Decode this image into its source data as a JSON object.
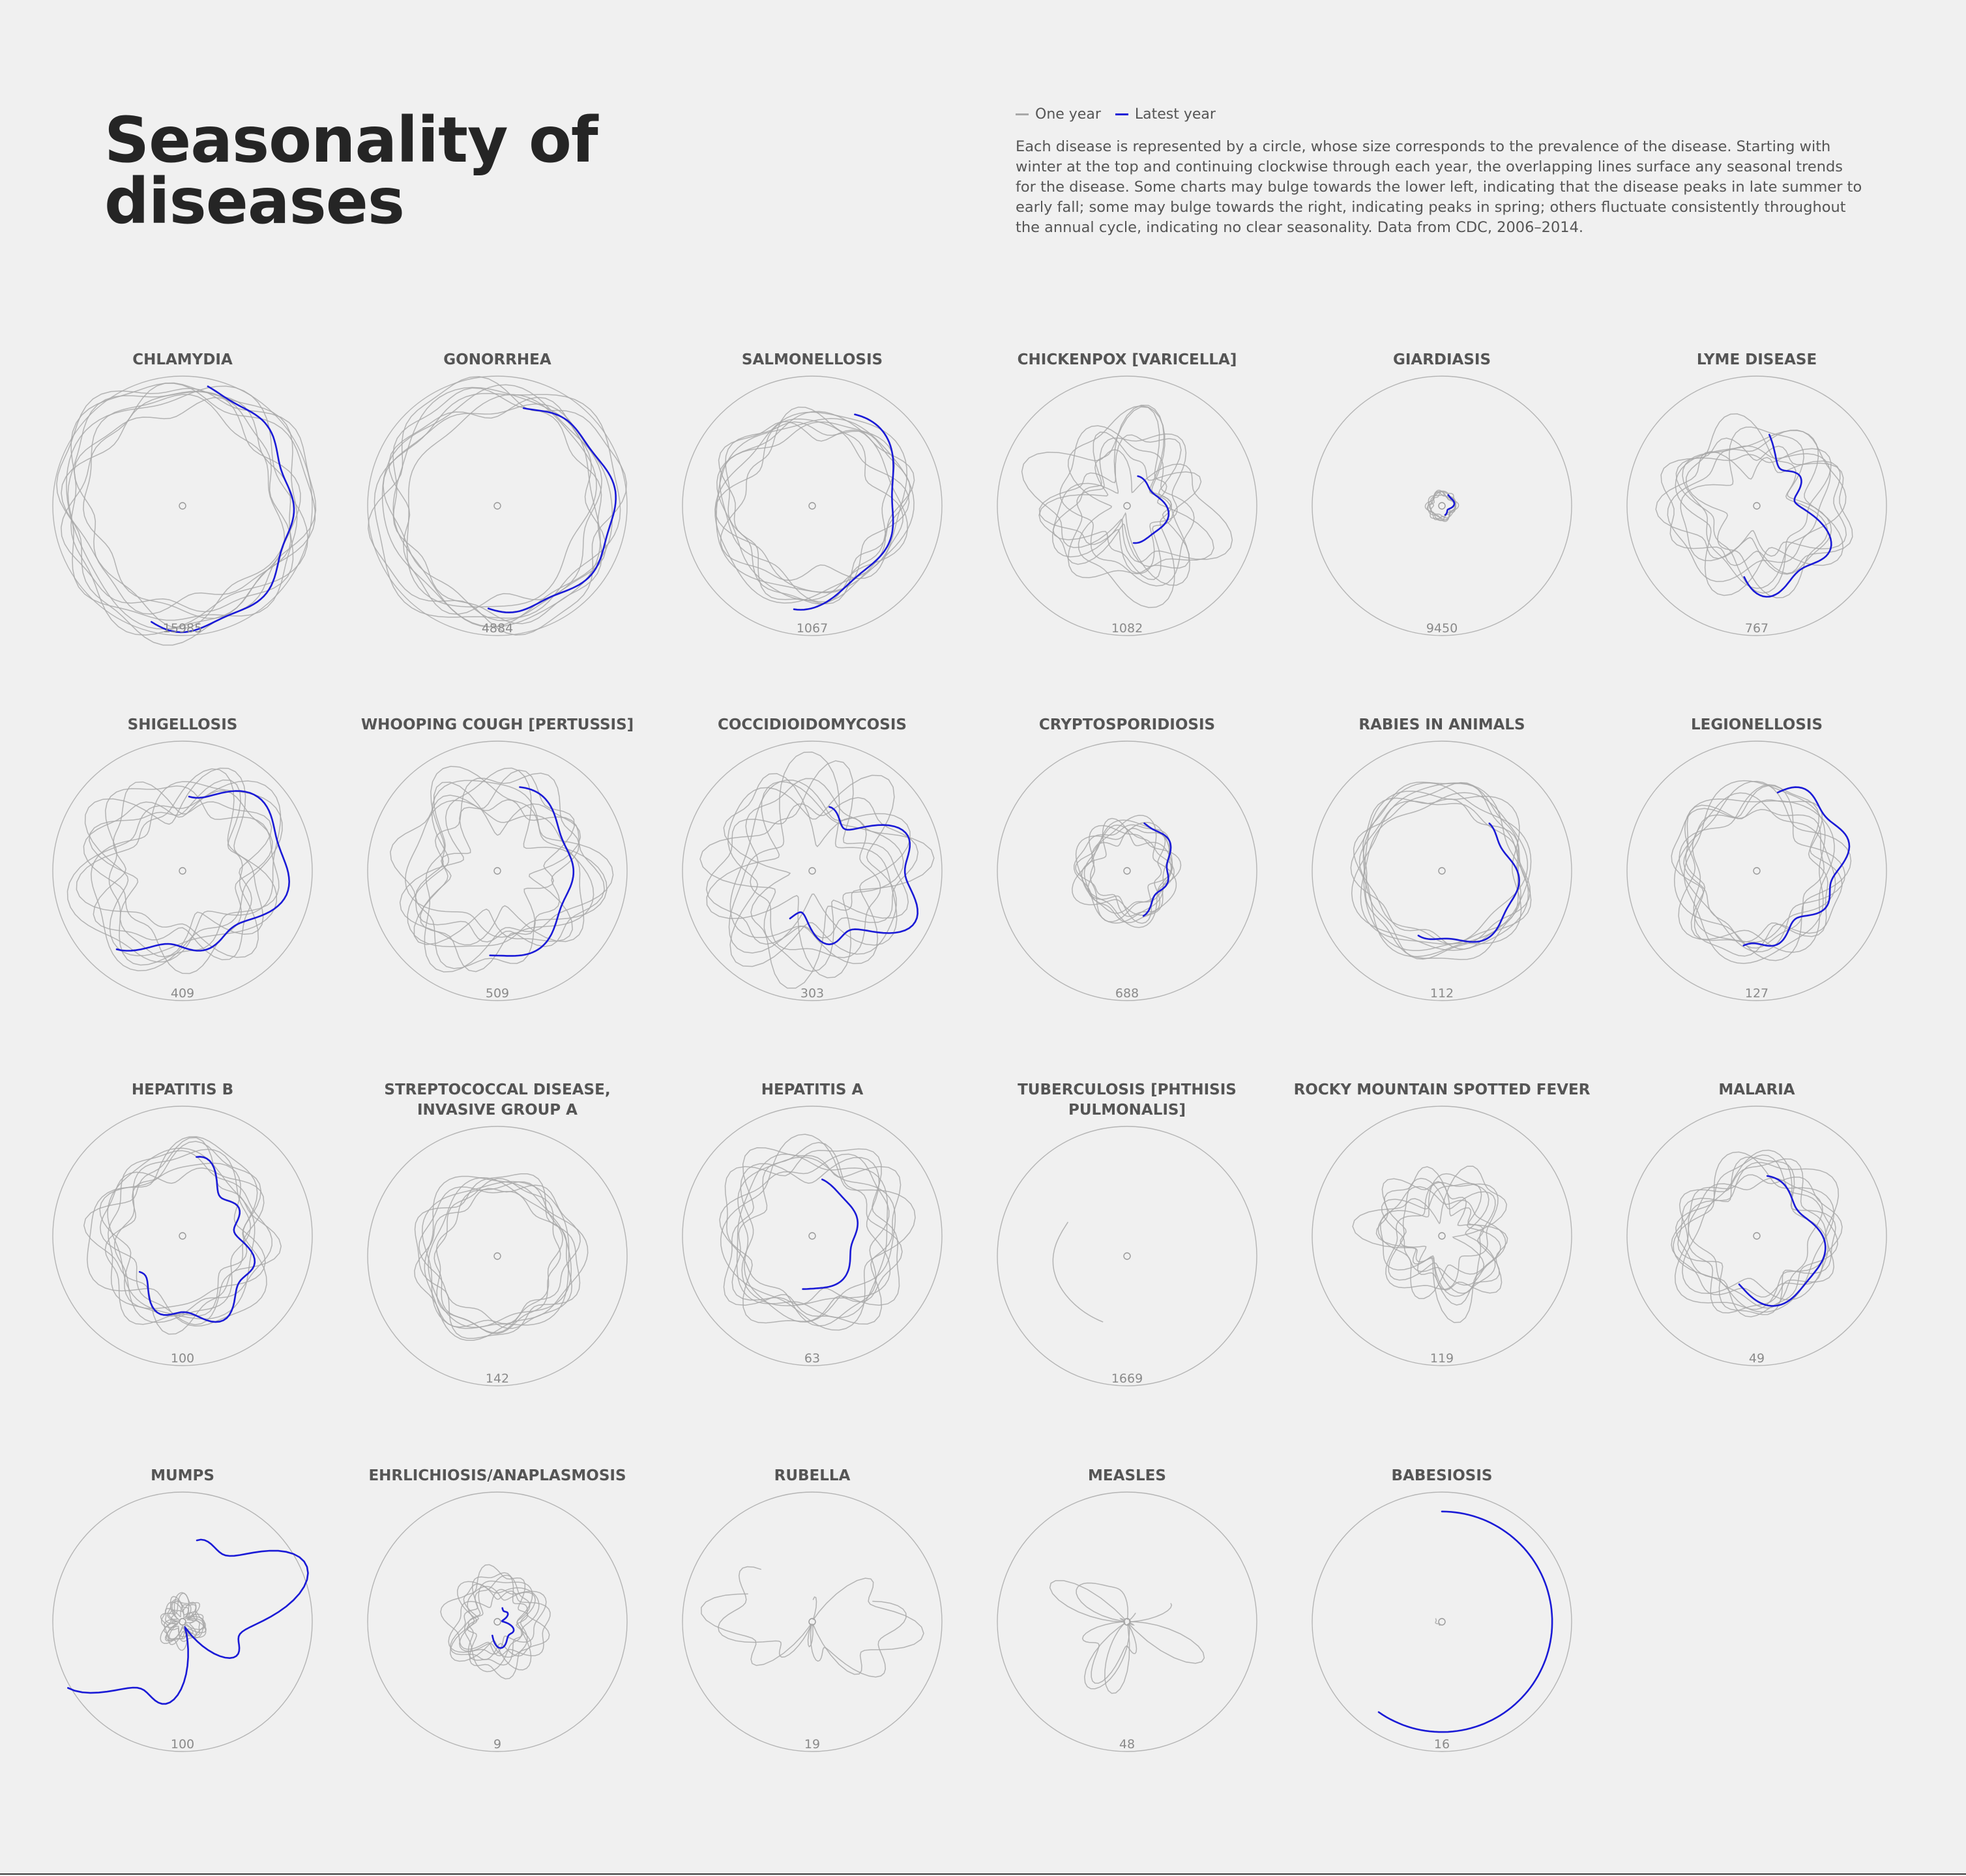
{
  "title": "Seasonality of diseases",
  "legend": [
    {
      "label": "One year",
      "color": "#a8a8a8"
    },
    {
      "label": "Latest year",
      "color": "#1a1ad6"
    }
  ],
  "description": "Each disease is represented by a circle, whose size corresponds to the prevalence of the disease. Starting with winter at the top and continuing clockwise through each year, the overlapping lines surface any seasonal trends for the disease. Some charts may bulge towards the lower left, indicating that the disease peaks in late summer to early fall; some may bulge towards the right, indicating peaks in spring; others fluctuate consistently throughout the annual cycle, indicating no clear seasonality. Data from CDC, 2006–2014.",
  "chart_data": {
    "type": "radial-line",
    "period": "annual cycle",
    "orientation": "winter at top, clockwise",
    "colors": {
      "one_year": "#a8a8a8",
      "latest_year": "#1a1ad6",
      "ring": "#b4b4b4"
    },
    "small_multiples": [
      {
        "name": "CHLAMYDIA",
        "value": "15985",
        "latest": {
          "start_deg": 12,
          "end_deg": 195,
          "radius": 0.89,
          "amp": 0.06
        },
        "history": {
          "count": 8,
          "radius": 0.87,
          "amp": 0.07
        }
      },
      {
        "name": "GONORRHEA",
        "value": "4884",
        "latest": {
          "start_deg": 15,
          "end_deg": 185,
          "radius": 0.85,
          "amp": 0.05
        },
        "history": {
          "count": 8,
          "radius": 0.84,
          "amp": 0.07
        }
      },
      {
        "name": "SALMONELLOSIS",
        "value": "1067",
        "latest": {
          "start_deg": 25,
          "end_deg": 190,
          "radius": 0.7,
          "amp": 0.08
        },
        "history": {
          "count": 8,
          "radius": 0.68,
          "amp": 0.08
        }
      },
      {
        "name": "CHICKENPOX [VARICELLA]",
        "value": "1082",
        "latest": {
          "start_deg": 20,
          "end_deg": 170,
          "radius": 0.27,
          "amp": 0.05
        },
        "history": {
          "count": 8,
          "radius": 0.45,
          "amp": 0.2
        }
      },
      {
        "name": "GIARDIASIS",
        "value": "9450",
        "latest": {
          "start_deg": 30,
          "end_deg": 160,
          "radius": 0.08,
          "amp": 0.02
        },
        "history": {
          "count": 6,
          "radius": 0.1,
          "amp": 0.02
        }
      },
      {
        "name": "LYME DISEASE",
        "value": "767",
        "latest": {
          "start_deg": 10,
          "end_deg": 190,
          "radius": 0.5,
          "amp": 0.18
        },
        "history": {
          "count": 8,
          "radius": 0.52,
          "amp": 0.15
        }
      },
      {
        "name": "SHIGELLOSIS",
        "value": "409",
        "latest": {
          "start_deg": 5,
          "end_deg": 220,
          "radius": 0.7,
          "amp": 0.12
        },
        "history": {
          "count": 8,
          "radius": 0.62,
          "amp": 0.15
        }
      },
      {
        "name": "WHOOPING COUGH [PERTUSSIS]",
        "value": "509",
        "latest": {
          "start_deg": 15,
          "end_deg": 185,
          "radius": 0.62,
          "amp": 0.06
        },
        "history": {
          "count": 8,
          "radius": 0.58,
          "amp": 0.17
        }
      },
      {
        "name": "COCCIDIOIDOMYCOSIS",
        "value": "303",
        "latest": {
          "start_deg": 15,
          "end_deg": 205,
          "radius": 0.62,
          "amp": 0.2
        },
        "history": {
          "count": 8,
          "radius": 0.6,
          "amp": 0.2
        }
      },
      {
        "name": "CRYPTOSPORIDIOSIS",
        "value": "688",
        "latest": {
          "start_deg": 20,
          "end_deg": 160,
          "radius": 0.35,
          "amp": 0.05
        },
        "history": {
          "count": 8,
          "radius": 0.33,
          "amp": 0.06
        }
      },
      {
        "name": "RABIES IN ANIMALS",
        "value": "112",
        "latest": {
          "start_deg": 45,
          "end_deg": 200,
          "radius": 0.55,
          "amp": 0.06
        },
        "history": {
          "count": 8,
          "radius": 0.62,
          "amp": 0.08
        }
      },
      {
        "name": "LEGIONELLOSIS",
        "value": "127",
        "latest": {
          "start_deg": 15,
          "end_deg": 190,
          "radius": 0.62,
          "amp": 0.1
        },
        "history": {
          "count": 8,
          "radius": 0.55,
          "amp": 0.08
        }
      },
      {
        "name": "HEPATITIS B",
        "value": "100",
        "latest": {
          "start_deg": 10,
          "end_deg": 230,
          "radius": 0.55,
          "amp": 0.12
        },
        "history": {
          "count": 8,
          "radius": 0.6,
          "amp": 0.1
        }
      },
      {
        "name": "STREPTOCOCCAL DISEASE, INVASIVE GROUP A",
        "value": "142",
        "latest": null,
        "history": {
          "count": 8,
          "radius": 0.55,
          "amp": 0.07
        }
      },
      {
        "name": "HEPATITIS A",
        "value": "63",
        "latest": {
          "start_deg": 10,
          "end_deg": 190,
          "radius": 0.38,
          "amp": 0.05
        },
        "history": {
          "count": 8,
          "radius": 0.62,
          "amp": 0.1
        }
      },
      {
        "name": "TUBERCULOSIS [PHTHISIS PULMONALIS]",
        "value": "1669",
        "latest": null,
        "history": {
          "count": 1,
          "radius": 0.6,
          "amp": 0.02
        }
      },
      {
        "name": "ROCKY MOUNTAIN SPOTTED FEVER",
        "value": "119",
        "latest": null,
        "history": {
          "count": 8,
          "radius": 0.4,
          "amp": 0.16
        }
      },
      {
        "name": "MALARIA",
        "value": "49",
        "latest": {
          "start_deg": 10,
          "end_deg": 200,
          "radius": 0.48,
          "amp": 0.08
        },
        "history": {
          "count": 8,
          "radius": 0.5,
          "amp": 0.1
        }
      },
      {
        "name": "MUMPS",
        "value": "100",
        "latest": {
          "start_deg": 10,
          "end_deg": 240,
          "radius": 0.55,
          "amp": 0.35
        },
        "history": {
          "count": 8,
          "radius": 0.12,
          "amp": 0.06
        }
      },
      {
        "name": "EHRLICHIOSIS/ANAPLASMOSIS",
        "value": "9",
        "latest": {
          "start_deg": 20,
          "end_deg": 200,
          "radius": 0.12,
          "amp": 0.06
        },
        "history": {
          "count": 8,
          "radius": 0.28,
          "amp": 0.1
        }
      },
      {
        "name": "RUBELLA",
        "value": "19",
        "latest": null,
        "history": {
          "count": 2,
          "radius": 0.42,
          "amp": 0.25
        }
      },
      {
        "name": "MEASLES",
        "value": "48",
        "latest": null,
        "history": {
          "count": 3,
          "radius": 0.18,
          "amp": 0.3
        }
      },
      {
        "name": "BABESIOSIS",
        "value": "16",
        "latest": {
          "start_deg": 0,
          "end_deg": 215,
          "radius": 0.85,
          "amp": 0
        },
        "history": {
          "count": 1,
          "radius": 0.04,
          "amp": 0.01
        }
      }
    ]
  }
}
